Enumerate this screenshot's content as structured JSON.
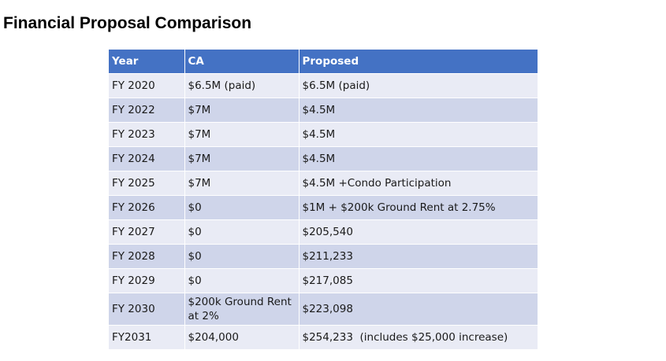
{
  "title": "Financial Proposal Comparison",
  "table": {
    "headers": [
      "Year",
      "CA",
      "Proposed"
    ],
    "rows": [
      [
        "FY 2020",
        "$6.5M (paid)",
        "$6.5M (paid)"
      ],
      [
        "FY 2022",
        "$7M",
        "$4.5M"
      ],
      [
        "FY 2023",
        "$7M",
        "$4.5M"
      ],
      [
        "FY 2024",
        "$7M",
        "$4.5M"
      ],
      [
        "FY 2025",
        "$7M",
        "$4.5M +Condo Participation"
      ],
      [
        "FY 2026",
        "$0",
        "$1M + $200k Ground Rent at 2.75%"
      ],
      [
        "FY 2027",
        "$0",
        "$205,540"
      ],
      [
        "FY 2028",
        "$0",
        "$211,233"
      ],
      [
        "FY 2029",
        "$0",
        "$217,085"
      ],
      [
        "FY 2030",
        "$200k Ground Rent at 2%",
        "$223,098"
      ],
      [
        "FY2031",
        "$204,000",
        "$254,233  (includes $25,000 increase)"
      ]
    ]
  },
  "colors": {
    "header": "#4472c4",
    "row_light": "#e9ebf5",
    "row_dark": "#cfd5ea"
  }
}
